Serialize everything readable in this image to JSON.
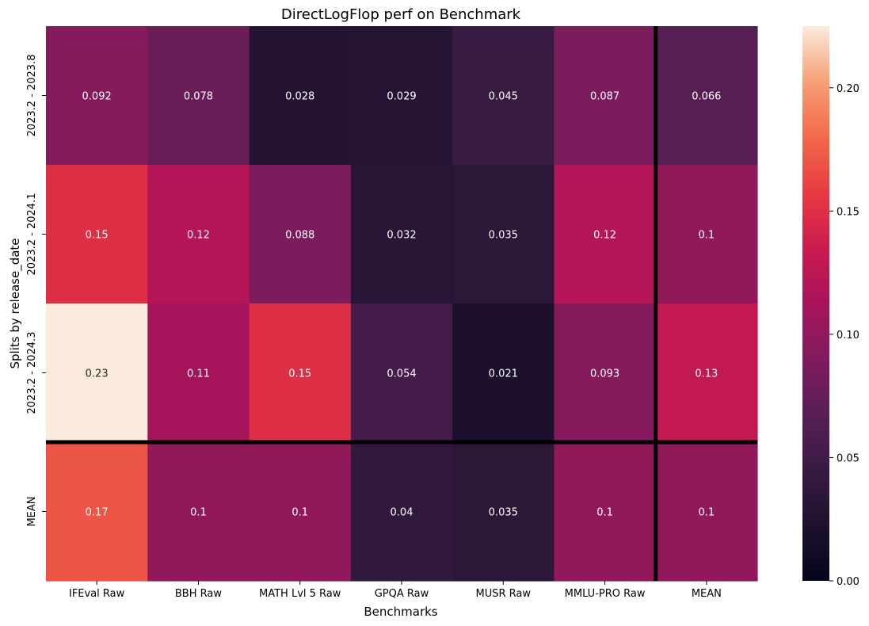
{
  "chart_data": {
    "type": "heatmap",
    "title": "DirectLogFlop perf on Benchmark",
    "xlabel": "Benchmarks",
    "ylabel": "Splits by release_date",
    "x_categories": [
      "IFEval Raw",
      "BBH Raw",
      "MATH Lvl 5 Raw",
      "GPQA Raw",
      "MUSR Raw",
      "MMLU-PRO Raw",
      "MEAN"
    ],
    "y_categories": [
      "2023.2 - 2023.8",
      "2023.2 - 2024.1",
      "2023.2 - 2024.3",
      "MEAN"
    ],
    "values": [
      [
        0.092,
        0.078,
        0.028,
        0.029,
        0.045,
        0.087,
        0.066
      ],
      [
        0.15,
        0.12,
        0.088,
        0.032,
        0.035,
        0.12,
        0.1
      ],
      [
        0.23,
        0.11,
        0.15,
        0.054,
        0.021,
        0.093,
        0.13
      ],
      [
        0.17,
        0.1,
        0.1,
        0.04,
        0.035,
        0.1,
        0.1
      ]
    ],
    "value_labels": [
      [
        "0.092",
        "0.078",
        "0.028",
        "0.029",
        "0.045",
        "0.087",
        "0.066"
      ],
      [
        "0.15",
        "0.12",
        "0.088",
        "0.032",
        "0.035",
        "0.12",
        "0.1"
      ],
      [
        "0.23",
        "0.11",
        "0.15",
        "0.054",
        "0.021",
        "0.093",
        "0.13"
      ],
      [
        "0.17",
        "0.1",
        "0.1",
        "0.04",
        "0.035",
        "0.1",
        "0.1"
      ]
    ],
    "colormap": "rocket",
    "vmin": 0,
    "vmax": 0.225,
    "colorbar_ticks": [
      0.0,
      0.05,
      0.1,
      0.15,
      0.2
    ],
    "colorbar_tick_labels": [
      "0.00",
      "0.05",
      "0.10",
      "0.15",
      "0.20"
    ],
    "separator_after_row": 3,
    "separator_after_col": 6,
    "separator_color": "#000000"
  }
}
